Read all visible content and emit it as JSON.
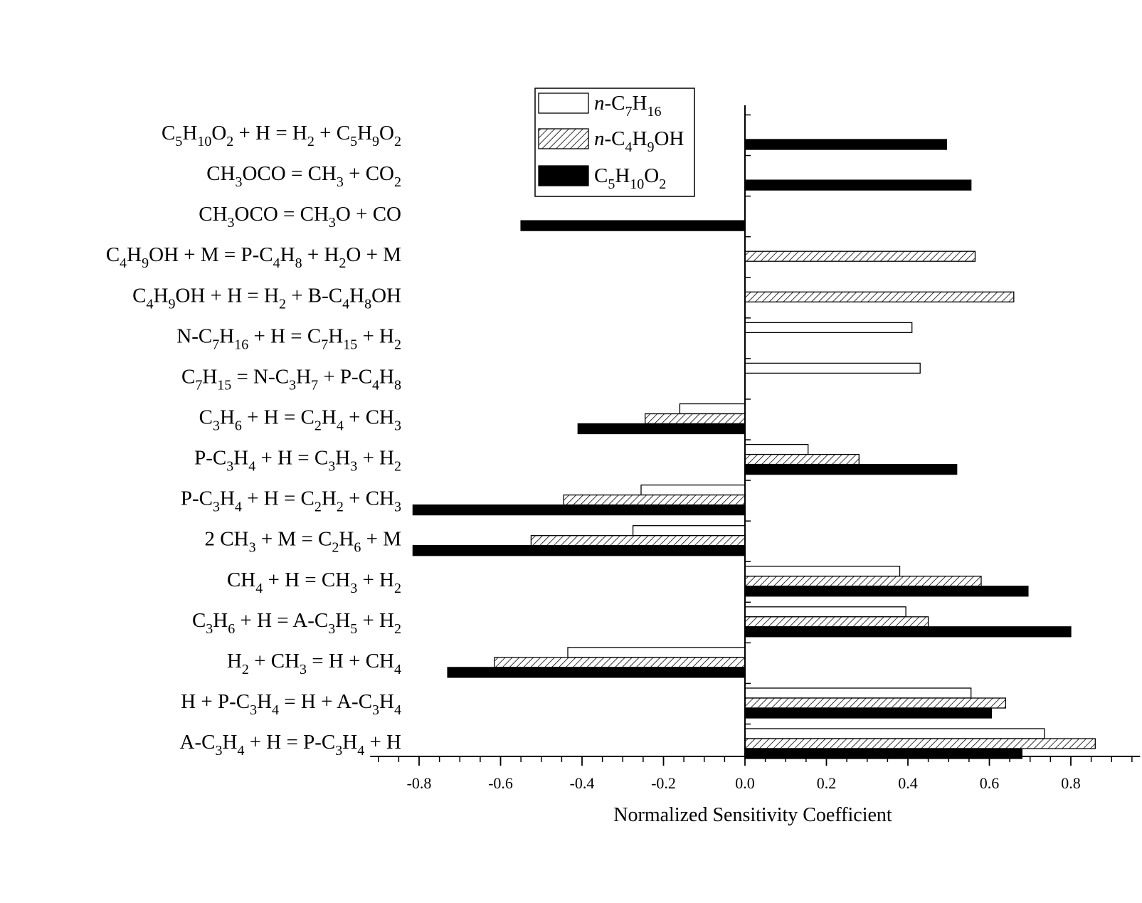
{
  "chart_data": {
    "type": "bar",
    "orientation": "horizontal",
    "xlabel": "Normalized Sensitivity Coefficient",
    "xlim": [
      -0.92,
      0.97
    ],
    "x_ticks": [
      "-0.8",
      "-0.6",
      "-0.4",
      "-0.2",
      "0.0",
      "0.2",
      "0.4",
      "0.6",
      "0.8"
    ],
    "x_tick_values": [
      -0.8,
      -0.6,
      -0.4,
      -0.2,
      0.0,
      0.2,
      0.4,
      0.6,
      0.8
    ],
    "categories": [
      "C5H10O2 + H = H2 + C5H9O2",
      "CH3OCO = CH3 + CO2",
      "CH3OCO = CH3O + CO",
      "C4H9OH + M = P-C4H8 + H2O + M",
      "C4H9OH + H = H2 + B-C4H8OH",
      "N-C7H16 + H = C7H15 + H2",
      "C7H15 = N-C3H7 + P-C4H8",
      "C3H6 + H = C2H4 + CH3",
      "P-C3H4 + H = C3H3 + H2",
      "P-C3H4 + H = C2H2 + CH3",
      "2 CH3 + M = C2H6 + M",
      "CH4 + H = CH3 + H2",
      "C3H6 + H = A-C3H5 + H2",
      "H2 + CH3 = H + CH4",
      "H + P-C3H4 = H + A-C3H4",
      "A-C3H4 + H = P-C3H4 + H"
    ],
    "category_labels": [
      [
        {
          "t": "C"
        },
        {
          "t": "5",
          "s": 1
        },
        {
          "t": "H"
        },
        {
          "t": "10",
          "s": 1
        },
        {
          "t": "O"
        },
        {
          "t": "2",
          "s": 1
        },
        {
          "t": " + H = H"
        },
        {
          "t": "2",
          "s": 1
        },
        {
          "t": " + C"
        },
        {
          "t": "5",
          "s": 1
        },
        {
          "t": "H"
        },
        {
          "t": "9",
          "s": 1
        },
        {
          "t": "O"
        },
        {
          "t": "2",
          "s": 1
        }
      ],
      [
        {
          "t": "CH"
        },
        {
          "t": "3",
          "s": 1
        },
        {
          "t": "OCO = CH"
        },
        {
          "t": "3",
          "s": 1
        },
        {
          "t": " + CO"
        },
        {
          "t": "2",
          "s": 1
        }
      ],
      [
        {
          "t": "CH"
        },
        {
          "t": "3",
          "s": 1
        },
        {
          "t": "OCO = CH"
        },
        {
          "t": "3",
          "s": 1
        },
        {
          "t": "O + CO"
        }
      ],
      [
        {
          "t": "C"
        },
        {
          "t": "4",
          "s": 1
        },
        {
          "t": "H"
        },
        {
          "t": "9",
          "s": 1
        },
        {
          "t": "OH + M = P-C"
        },
        {
          "t": "4",
          "s": 1
        },
        {
          "t": "H"
        },
        {
          "t": "8",
          "s": 1
        },
        {
          "t": " + H"
        },
        {
          "t": "2",
          "s": 1
        },
        {
          "t": "O + M"
        }
      ],
      [
        {
          "t": "C"
        },
        {
          "t": "4",
          "s": 1
        },
        {
          "t": "H"
        },
        {
          "t": "9",
          "s": 1
        },
        {
          "t": "OH + H = H"
        },
        {
          "t": "2",
          "s": 1
        },
        {
          "t": " + B-C"
        },
        {
          "t": "4",
          "s": 1
        },
        {
          "t": "H"
        },
        {
          "t": "8",
          "s": 1
        },
        {
          "t": "OH"
        }
      ],
      [
        {
          "t": "N-C"
        },
        {
          "t": "7",
          "s": 1
        },
        {
          "t": "H"
        },
        {
          "t": "16",
          "s": 1
        },
        {
          "t": " + H = C"
        },
        {
          "t": "7",
          "s": 1
        },
        {
          "t": "H"
        },
        {
          "t": "15",
          "s": 1
        },
        {
          "t": " + H"
        },
        {
          "t": "2",
          "s": 1
        }
      ],
      [
        {
          "t": "C"
        },
        {
          "t": "7",
          "s": 1
        },
        {
          "t": "H"
        },
        {
          "t": "15",
          "s": 1
        },
        {
          "t": " = N-C"
        },
        {
          "t": "3",
          "s": 1
        },
        {
          "t": "H"
        },
        {
          "t": "7",
          "s": 1
        },
        {
          "t": " + P-C"
        },
        {
          "t": "4",
          "s": 1
        },
        {
          "t": "H"
        },
        {
          "t": "8",
          "s": 1
        }
      ],
      [
        {
          "t": "C"
        },
        {
          "t": "3",
          "s": 1
        },
        {
          "t": "H"
        },
        {
          "t": "6",
          "s": 1
        },
        {
          "t": " + H = C"
        },
        {
          "t": "2",
          "s": 1
        },
        {
          "t": "H"
        },
        {
          "t": "4",
          "s": 1
        },
        {
          "t": " + CH"
        },
        {
          "t": "3",
          "s": 1
        }
      ],
      [
        {
          "t": "P-C"
        },
        {
          "t": "3",
          "s": 1
        },
        {
          "t": "H"
        },
        {
          "t": "4",
          "s": 1
        },
        {
          "t": " + H = C"
        },
        {
          "t": "3",
          "s": 1
        },
        {
          "t": "H"
        },
        {
          "t": "3",
          "s": 1
        },
        {
          "t": " + H"
        },
        {
          "t": "2",
          "s": 1
        }
      ],
      [
        {
          "t": "P-C"
        },
        {
          "t": "3",
          "s": 1
        },
        {
          "t": "H"
        },
        {
          "t": "4",
          "s": 1
        },
        {
          "t": " + H = C"
        },
        {
          "t": "2",
          "s": 1
        },
        {
          "t": "H"
        },
        {
          "t": "2",
          "s": 1
        },
        {
          "t": " + CH"
        },
        {
          "t": "3",
          "s": 1
        }
      ],
      [
        {
          "t": "2 CH"
        },
        {
          "t": "3",
          "s": 1
        },
        {
          "t": " + M = C"
        },
        {
          "t": "2",
          "s": 1
        },
        {
          "t": "H"
        },
        {
          "t": "6",
          "s": 1
        },
        {
          "t": " + M"
        }
      ],
      [
        {
          "t": "CH"
        },
        {
          "t": "4",
          "s": 1
        },
        {
          "t": " + H = CH"
        },
        {
          "t": "3",
          "s": 1
        },
        {
          "t": " + H"
        },
        {
          "t": "2",
          "s": 1
        }
      ],
      [
        {
          "t": "C"
        },
        {
          "t": "3",
          "s": 1
        },
        {
          "t": "H"
        },
        {
          "t": "6",
          "s": 1
        },
        {
          "t": " + H = A-C"
        },
        {
          "t": "3",
          "s": 1
        },
        {
          "t": "H"
        },
        {
          "t": "5",
          "s": 1
        },
        {
          "t": " + H"
        },
        {
          "t": "2",
          "s": 1
        }
      ],
      [
        {
          "t": "H"
        },
        {
          "t": "2",
          "s": 1
        },
        {
          "t": " + CH"
        },
        {
          "t": "3",
          "s": 1
        },
        {
          "t": " = H + CH"
        },
        {
          "t": "4",
          "s": 1
        }
      ],
      [
        {
          "t": "H + P-C"
        },
        {
          "t": "3",
          "s": 1
        },
        {
          "t": "H"
        },
        {
          "t": "4",
          "s": 1
        },
        {
          "t": " = H + A-C"
        },
        {
          "t": "3",
          "s": 1
        },
        {
          "t": "H"
        },
        {
          "t": "4",
          "s": 1
        }
      ],
      [
        {
          "t": "A-C"
        },
        {
          "t": "3",
          "s": 1
        },
        {
          "t": "H"
        },
        {
          "t": "4",
          "s": 1
        },
        {
          "t": " + H = P-C"
        },
        {
          "t": "3",
          "s": 1
        },
        {
          "t": "H"
        },
        {
          "t": "4",
          "s": 1
        },
        {
          "t": " + H"
        }
      ]
    ],
    "series": [
      {
        "name": "n-C7H16",
        "legend_parts": [
          {
            "t": "n",
            "i": 1
          },
          {
            "t": "-C"
          },
          {
            "t": "7",
            "s": 1
          },
          {
            "t": "H"
          },
          {
            "t": "16",
            "s": 1
          }
        ],
        "fill": "white",
        "values": [
          null,
          null,
          null,
          null,
          null,
          0.41,
          0.43,
          -0.16,
          0.155,
          -0.255,
          -0.275,
          0.38,
          0.395,
          -0.435,
          0.555,
          0.735
        ]
      },
      {
        "name": "n-C4H9OH",
        "legend_parts": [
          {
            "t": "n",
            "i": 1
          },
          {
            "t": "-C"
          },
          {
            "t": "4",
            "s": 1
          },
          {
            "t": "H"
          },
          {
            "t": "9",
            "s": 1
          },
          {
            "t": "OH"
          }
        ],
        "fill": "hatch",
        "values": [
          null,
          null,
          null,
          0.565,
          0.66,
          null,
          null,
          -0.245,
          0.28,
          -0.445,
          -0.525,
          0.58,
          0.45,
          -0.615,
          0.64,
          0.86
        ]
      },
      {
        "name": "C5H10O2",
        "legend_parts": [
          {
            "t": "C"
          },
          {
            "t": "5",
            "s": 1
          },
          {
            "t": "H"
          },
          {
            "t": "10",
            "s": 1
          },
          {
            "t": "O"
          },
          {
            "t": "2",
            "s": 1
          }
        ],
        "fill": "black",
        "values": [
          0.495,
          0.555,
          -0.55,
          null,
          null,
          null,
          null,
          -0.41,
          0.52,
          -0.815,
          -0.815,
          0.695,
          0.8,
          -0.73,
          0.605,
          0.68
        ]
      }
    ],
    "legend": "top",
    "grid": false
  }
}
